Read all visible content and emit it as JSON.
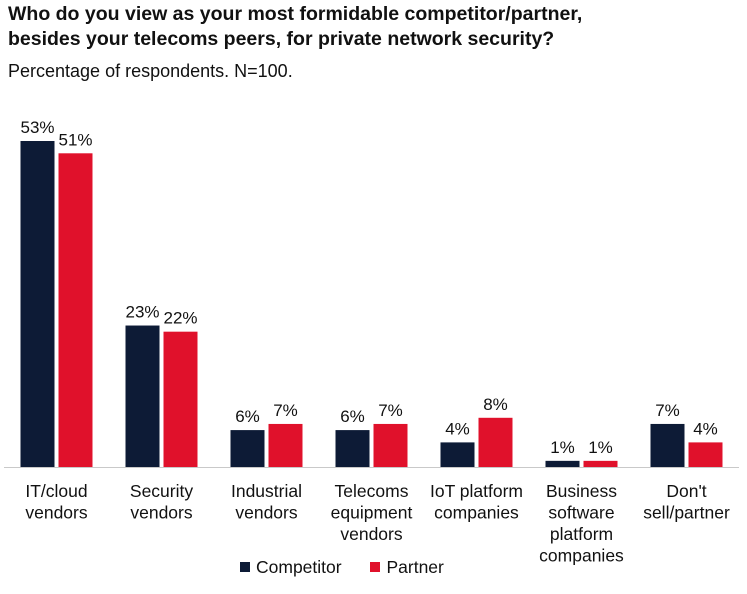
{
  "colors": {
    "competitor": "#0d1b36",
    "partner": "#e0112b",
    "axis": "#c9c9c9",
    "text": "#111111"
  },
  "chart_data": {
    "type": "bar",
    "title_lines": [
      "Who do you view as your most formidable competitor/partner,",
      "besides your telecoms peers, for private network security?"
    ],
    "subtitle": "Percentage of respondents. N=100.",
    "categories": [
      [
        "IT/cloud",
        "vendors"
      ],
      [
        "Security",
        "vendors"
      ],
      [
        "Industrial",
        "vendors"
      ],
      [
        "Telecoms",
        "equipment",
        "vendors"
      ],
      [
        "IoT platform",
        "companies"
      ],
      [
        "Business",
        "software",
        "platform",
        "companies"
      ],
      [
        "Don't",
        "sell/partner"
      ]
    ],
    "series": [
      {
        "name": "Competitor",
        "values": [
          53,
          23,
          6,
          6,
          4,
          1,
          7
        ],
        "labels": [
          "53%",
          "23%",
          "6%",
          "6%",
          "4%",
          "1%",
          "7%"
        ]
      },
      {
        "name": "Partner",
        "values": [
          51,
          22,
          7,
          7,
          8,
          1,
          4
        ],
        "labels": [
          "51%",
          "22%",
          "7%",
          "7%",
          "8%",
          "1%",
          "4%"
        ]
      }
    ],
    "xlabel": "",
    "ylabel": "",
    "ylim": [
      0,
      55
    ],
    "grid": false,
    "legend_position": "bottom"
  }
}
